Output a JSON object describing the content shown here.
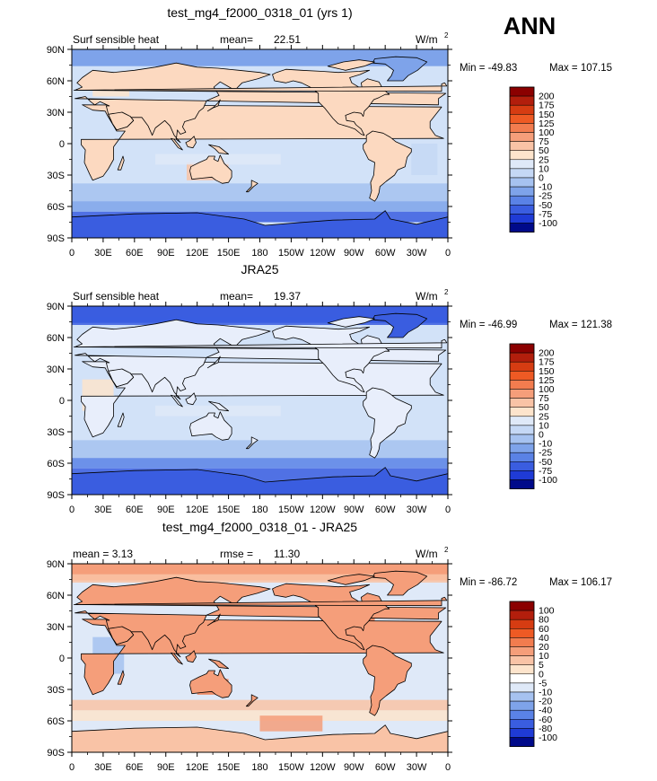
{
  "season": "ANN",
  "chart_data": [
    {
      "type": "contour-map",
      "title": "test_mg4_f2000_0318_01 (yrs 1)",
      "left_label": "Surf sensible heat",
      "center_label_name": "mean=",
      "center_label_value": "22.51",
      "units": "W/m",
      "units_sup": "2",
      "min_label": "Min = -49.83",
      "max_label": "Max = 107.15",
      "min": -49.83,
      "max": 107.15,
      "mean": 22.51,
      "lat_ticks": [
        "90N",
        "60N",
        "30N",
        "0",
        "30S",
        "60S",
        "90S"
      ],
      "lon_ticks": [
        "0",
        "30E",
        "60E",
        "90E",
        "120E",
        "150E",
        "180",
        "150W",
        "120W",
        "90W",
        "60W",
        "30W",
        "0"
      ],
      "levels": [
        "200",
        "175",
        "150",
        "125",
        "100",
        "75",
        "50",
        "25",
        "10",
        "0",
        "-10",
        "-25",
        "-50",
        "-75",
        "-100"
      ],
      "colors": [
        "#8b0000",
        "#b21e0c",
        "#d63c12",
        "#ee5a24",
        "#f27c4f",
        "#f59e7a",
        "#f9c3a6",
        "#fde4cc",
        "#dfe9f8",
        "#c5d8f5",
        "#a6c2f0",
        "#7ea3ea",
        "#5a82e6",
        "#3a5de0",
        "#1f3bd6",
        "#000a8a"
      ]
    },
    {
      "type": "contour-map",
      "title": "JRA25",
      "left_label": "Surf sensible heat",
      "center_label_name": "mean=",
      "center_label_value": "19.37",
      "units": "W/m",
      "units_sup": "2",
      "min_label": "Min = -46.99",
      "max_label": "Max = 121.38",
      "min": -46.99,
      "max": 121.38,
      "mean": 19.37,
      "lat_ticks": [
        "90N",
        "60N",
        "30N",
        "0",
        "30S",
        "60S",
        "90S"
      ],
      "lon_ticks": [
        "0",
        "30E",
        "60E",
        "90E",
        "120E",
        "150E",
        "180",
        "150W",
        "120W",
        "90W",
        "60W",
        "30W",
        "0"
      ],
      "levels": [
        "200",
        "175",
        "150",
        "125",
        "100",
        "75",
        "50",
        "25",
        "10",
        "0",
        "-10",
        "-25",
        "-50",
        "-75",
        "-100"
      ],
      "colors": [
        "#8b0000",
        "#b21e0c",
        "#d63c12",
        "#ee5a24",
        "#f27c4f",
        "#f59e7a",
        "#f9c3a6",
        "#fde4cc",
        "#dfe9f8",
        "#c5d8f5",
        "#a6c2f0",
        "#7ea3ea",
        "#5a82e6",
        "#3a5de0",
        "#1f3bd6",
        "#000a8a"
      ]
    },
    {
      "type": "contour-map",
      "title": "test_mg4_f2000_0318_01 - JRA25",
      "left_label": "mean =    3.13",
      "center_label_name": "rmse =",
      "center_label_value": "11.30",
      "units": "W/m",
      "units_sup": "2",
      "min_label": "Min = -86.72",
      "max_label": "Max = 106.17",
      "min": -86.72,
      "max": 106.17,
      "mean": 3.13,
      "rmse": 11.3,
      "lat_ticks": [
        "90N",
        "60N",
        "30N",
        "0",
        "30S",
        "60S",
        "90S"
      ],
      "lon_ticks": [
        "0",
        "30E",
        "60E",
        "90E",
        "120E",
        "150E",
        "180",
        "150W",
        "120W",
        "90W",
        "60W",
        "30W",
        "0"
      ],
      "levels": [
        "100",
        "80",
        "60",
        "40",
        "20",
        "10",
        "5",
        "0",
        "-5",
        "-10",
        "-20",
        "-40",
        "-60",
        "-80",
        "-100"
      ],
      "colors": [
        "#8b0000",
        "#b21e0c",
        "#d63c12",
        "#ee5a24",
        "#f27c4f",
        "#f59e7a",
        "#f9c3a6",
        "#fde4cc",
        "#ffffff",
        "#dfe9f8",
        "#a6c2f0",
        "#7ea3ea",
        "#5a82e6",
        "#3a5de0",
        "#1f3bd6",
        "#000a8a"
      ]
    }
  ]
}
